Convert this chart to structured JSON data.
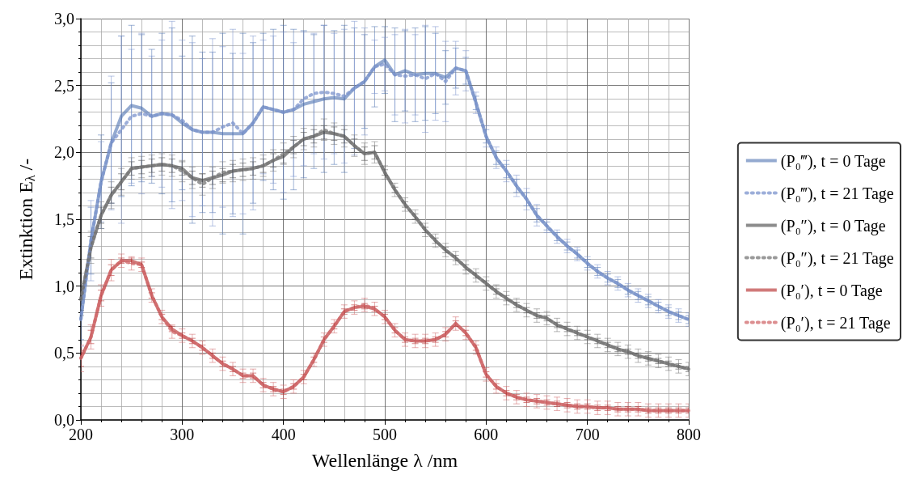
{
  "chart_data": {
    "type": "line",
    "xlabel": "Wellenlänge λ /nm",
    "ylabel": "Extinktion E$_{λ}$ /-",
    "x": [
      200,
      210,
      220,
      230,
      240,
      250,
      260,
      270,
      280,
      290,
      300,
      310,
      320,
      330,
      340,
      350,
      360,
      370,
      380,
      390,
      400,
      410,
      420,
      430,
      440,
      450,
      460,
      470,
      480,
      490,
      500,
      510,
      520,
      530,
      540,
      550,
      560,
      570,
      580,
      590,
      600,
      610,
      620,
      630,
      640,
      650,
      660,
      670,
      680,
      690,
      700,
      710,
      720,
      730,
      740,
      750,
      760,
      770,
      780,
      790,
      800
    ],
    "xlim": [
      200,
      800
    ],
    "xticks": [
      200,
      300,
      400,
      500,
      600,
      700,
      800
    ],
    "ylim": [
      0,
      3
    ],
    "yticks": [
      {
        "value": 0,
        "label": "0,0"
      },
      {
        "value": 0.5,
        "label": "0,5"
      },
      {
        "value": 1,
        "label": "1,0"
      },
      {
        "value": 1.5,
        "label": "1,5"
      },
      {
        "value": 2,
        "label": "2,0"
      },
      {
        "value": 2.5,
        "label": "2,5"
      },
      {
        "value": 3,
        "label": "3,0"
      }
    ],
    "grid": true,
    "legend": "right",
    "marker": "none",
    "series": [
      {
        "name": "(P₀‴), t = 0 Tage",
        "color": "#4c72b0",
        "line_style": "solid",
        "values": [
          0.75,
          1.34,
          1.78,
          2.07,
          2.27,
          2.35,
          2.33,
          2.27,
          2.29,
          2.28,
          2.22,
          2.17,
          2.15,
          2.15,
          2.14,
          2.14,
          2.14,
          2.22,
          2.34,
          2.32,
          2.3,
          2.32,
          2.36,
          2.38,
          2.4,
          2.41,
          2.4,
          2.48,
          2.53,
          2.64,
          2.69,
          2.58,
          2.61,
          2.58,
          2.59,
          2.59,
          2.56,
          2.63,
          2.61,
          2.37,
          2.12,
          1.96,
          1.86,
          1.75,
          1.65,
          1.53,
          1.45,
          1.37,
          1.3,
          1.24,
          1.17,
          1.11,
          1.06,
          1.02,
          0.97,
          0.93,
          0.89,
          0.85,
          0.81,
          0.78,
          0.75
        ],
        "errors": [
          0.15,
          0.25,
          0.35,
          0.45,
          0.6,
          0.6,
          0.55,
          0.5,
          0.6,
          0.65,
          0.5,
          0.7,
          0.6,
          0.6,
          0.75,
          0.6,
          0.75,
          0.6,
          0.55,
          0.6,
          0.65,
          0.6,
          0.55,
          0.5,
          0.55,
          0.5,
          0.55,
          0.45,
          0.35,
          0.3,
          0.25,
          0.35,
          0.3,
          0.35,
          0.35,
          0.3,
          0.2,
          0.15,
          0.1,
          0.05,
          0.05,
          0.05,
          0.05,
          0.05,
          0.05,
          0.05,
          0.03,
          0.03,
          0.03,
          0.03,
          0.03,
          0.03,
          0.03,
          0.03,
          0.03,
          0.03,
          0.03,
          0.03,
          0.03,
          0.03,
          0.03
        ]
      },
      {
        "name": "(P₀‴), t = 21 Tage",
        "color": "#7b93cc",
        "line_style": "dotted",
        "values": [
          0.75,
          1.34,
          1.78,
          2.07,
          2.17,
          2.27,
          2.29,
          2.27,
          2.29,
          2.28,
          2.24,
          2.17,
          2.15,
          2.15,
          2.19,
          2.22,
          2.14,
          2.22,
          2.34,
          2.32,
          2.3,
          2.32,
          2.4,
          2.44,
          2.45,
          2.44,
          2.42,
          2.48,
          2.53,
          2.64,
          2.66,
          2.58,
          2.57,
          2.58,
          2.55,
          2.59,
          2.53,
          2.63,
          2.61,
          2.37,
          2.12,
          1.96,
          1.86,
          1.75,
          1.65,
          1.53,
          1.45,
          1.37,
          1.3,
          1.24,
          1.17,
          1.11,
          1.06,
          1.02,
          0.97,
          0.93,
          0.89,
          0.85,
          0.81,
          0.78,
          0.75
        ],
        "errors": [
          0.2,
          0.3,
          0.3,
          0.5,
          0.7,
          0.5,
          0.6,
          0.45,
          0.55,
          0.7,
          0.6,
          0.65,
          0.55,
          0.7,
          0.6,
          0.7,
          0.6,
          0.65,
          0.5,
          0.55,
          0.6,
          0.5,
          0.5,
          0.45,
          0.5,
          0.45,
          0.5,
          0.5,
          0.4,
          0.2,
          0.2,
          0.3,
          0.35,
          0.3,
          0.4,
          0.35,
          0.3,
          0.2,
          0.15,
          0.08,
          0.08,
          0.08,
          0.08,
          0.08,
          0.08,
          0.08,
          0.05,
          0.05,
          0.05,
          0.05,
          0.05,
          0.05,
          0.05,
          0.05,
          0.05,
          0.05,
          0.05,
          0.05,
          0.05,
          0.05,
          0.05
        ]
      },
      {
        "name": "(P₀″), t = 0 Tage",
        "color": "#404040",
        "line_style": "solid",
        "values": [
          0.9,
          1.29,
          1.53,
          1.68,
          1.78,
          1.88,
          1.89,
          1.9,
          1.91,
          1.9,
          1.88,
          1.81,
          1.79,
          1.81,
          1.83,
          1.86,
          1.87,
          1.88,
          1.9,
          1.94,
          1.97,
          2.04,
          2.1,
          2.12,
          2.15,
          2.14,
          2.12,
          2.05,
          1.99,
          2.0,
          1.85,
          1.72,
          1.61,
          1.52,
          1.42,
          1.34,
          1.27,
          1.21,
          1.14,
          1.08,
          1.02,
          0.96,
          0.91,
          0.86,
          0.82,
          0.78,
          0.76,
          0.71,
          0.68,
          0.65,
          0.62,
          0.59,
          0.56,
          0.53,
          0.51,
          0.48,
          0.46,
          0.44,
          0.42,
          0.4,
          0.38
        ],
        "errors": [
          0.08,
          0.08,
          0.06,
          0.06,
          0.06,
          0.05,
          0.05,
          0.05,
          0.05,
          0.05,
          0.05,
          0.05,
          0.05,
          0.05,
          0.05,
          0.05,
          0.05,
          0.05,
          0.05,
          0.05,
          0.05,
          0.05,
          0.05,
          0.05,
          0.05,
          0.05,
          0.05,
          0.05,
          0.05,
          0.05,
          0.02,
          0.02,
          0.02,
          0.02,
          0.02,
          0.02,
          0.02,
          0.02,
          0.02,
          0.02,
          0.02,
          0.02,
          0.02,
          0.02,
          0.02,
          0.02,
          0.02,
          0.02,
          0.02,
          0.02,
          0.02,
          0.02,
          0.02,
          0.02,
          0.02,
          0.02,
          0.02,
          0.02,
          0.02,
          0.02,
          0.02
        ]
      },
      {
        "name": "(P₀″), t = 21 Tage",
        "color": "#777777",
        "line_style": "dotted",
        "values": [
          0.9,
          1.29,
          1.53,
          1.68,
          1.78,
          1.88,
          1.89,
          1.9,
          1.91,
          1.9,
          1.86,
          1.81,
          1.76,
          1.81,
          1.85,
          1.86,
          1.87,
          1.88,
          1.9,
          1.94,
          1.99,
          2.04,
          2.1,
          2.12,
          2.17,
          2.14,
          2.12,
          2.05,
          1.99,
          2.0,
          1.85,
          1.72,
          1.61,
          1.52,
          1.42,
          1.34,
          1.27,
          1.21,
          1.14,
          1.08,
          1.02,
          0.96,
          0.91,
          0.86,
          0.82,
          0.78,
          0.76,
          0.71,
          0.68,
          0.65,
          0.62,
          0.59,
          0.56,
          0.53,
          0.51,
          0.48,
          0.46,
          0.44,
          0.42,
          0.4,
          0.38
        ],
        "errors": [
          0.12,
          0.12,
          0.1,
          0.1,
          0.1,
          0.08,
          0.08,
          0.08,
          0.08,
          0.08,
          0.08,
          0.08,
          0.08,
          0.08,
          0.08,
          0.08,
          0.08,
          0.08,
          0.08,
          0.08,
          0.08,
          0.08,
          0.08,
          0.08,
          0.08,
          0.08,
          0.08,
          0.08,
          0.08,
          0.08,
          0.05,
          0.05,
          0.05,
          0.05,
          0.05,
          0.05,
          0.05,
          0.05,
          0.05,
          0.05,
          0.05,
          0.05,
          0.05,
          0.05,
          0.05,
          0.05,
          0.05,
          0.05,
          0.05,
          0.05,
          0.05,
          0.05,
          0.05,
          0.05,
          0.05,
          0.05,
          0.05,
          0.05,
          0.05,
          0.05,
          0.05
        ]
      },
      {
        "name": "(P₀′), t = 0 Tage",
        "color": "#b22222",
        "line_style": "solid",
        "values": [
          0.46,
          0.62,
          0.93,
          1.12,
          1.19,
          1.19,
          1.16,
          0.93,
          0.77,
          0.68,
          0.63,
          0.59,
          0.54,
          0.48,
          0.42,
          0.38,
          0.33,
          0.33,
          0.26,
          0.23,
          0.21,
          0.25,
          0.32,
          0.45,
          0.6,
          0.7,
          0.81,
          0.84,
          0.85,
          0.83,
          0.77,
          0.67,
          0.6,
          0.59,
          0.59,
          0.6,
          0.64,
          0.72,
          0.65,
          0.54,
          0.34,
          0.25,
          0.2,
          0.17,
          0.15,
          0.14,
          0.13,
          0.12,
          0.11,
          0.1,
          0.1,
          0.09,
          0.09,
          0.08,
          0.08,
          0.08,
          0.07,
          0.07,
          0.07,
          0.07,
          0.07
        ],
        "errors": [
          0.06,
          0.05,
          0.04,
          0.04,
          0.02,
          0.02,
          0.02,
          0.02,
          0.02,
          0.02,
          0.02,
          0.02,
          0.02,
          0.02,
          0.02,
          0.02,
          0.02,
          0.02,
          0.02,
          0.02,
          0.02,
          0.02,
          0.02,
          0.02,
          0.02,
          0.02,
          0.02,
          0.02,
          0.02,
          0.02,
          0.02,
          0.02,
          0.02,
          0.02,
          0.02,
          0.02,
          0.02,
          0.02,
          0.02,
          0.02,
          0.02,
          0.02,
          0.02,
          0.02,
          0.02,
          0.02,
          0.02,
          0.02,
          0.02,
          0.02,
          0.02,
          0.02,
          0.02,
          0.02,
          0.02,
          0.02,
          0.02,
          0.02,
          0.02,
          0.02,
          0.02
        ]
      },
      {
        "name": "(P₀′), t = 21 Tage",
        "color": "#d0686b",
        "line_style": "dotted",
        "values": [
          0.46,
          0.62,
          0.93,
          1.12,
          1.19,
          1.17,
          1.16,
          0.93,
          0.77,
          0.66,
          0.63,
          0.59,
          0.54,
          0.48,
          0.42,
          0.38,
          0.33,
          0.33,
          0.26,
          0.23,
          0.21,
          0.25,
          0.32,
          0.45,
          0.6,
          0.7,
          0.81,
          0.84,
          0.86,
          0.83,
          0.77,
          0.67,
          0.6,
          0.59,
          0.59,
          0.6,
          0.64,
          0.72,
          0.65,
          0.54,
          0.34,
          0.25,
          0.2,
          0.17,
          0.15,
          0.14,
          0.13,
          0.12,
          0.11,
          0.1,
          0.1,
          0.09,
          0.09,
          0.08,
          0.08,
          0.08,
          0.07,
          0.07,
          0.07,
          0.07,
          0.07
        ],
        "errors": [
          0.1,
          0.09,
          0.08,
          0.08,
          0.05,
          0.05,
          0.05,
          0.05,
          0.05,
          0.05,
          0.05,
          0.05,
          0.05,
          0.05,
          0.05,
          0.05,
          0.05,
          0.05,
          0.05,
          0.05,
          0.05,
          0.05,
          0.05,
          0.05,
          0.05,
          0.05,
          0.05,
          0.05,
          0.05,
          0.05,
          0.05,
          0.05,
          0.05,
          0.05,
          0.05,
          0.05,
          0.05,
          0.05,
          0.05,
          0.05,
          0.05,
          0.05,
          0.05,
          0.05,
          0.05,
          0.05,
          0.05,
          0.05,
          0.05,
          0.05,
          0.05,
          0.05,
          0.05,
          0.05,
          0.05,
          0.05,
          0.05,
          0.05,
          0.05,
          0.05,
          0.05
        ]
      }
    ]
  }
}
